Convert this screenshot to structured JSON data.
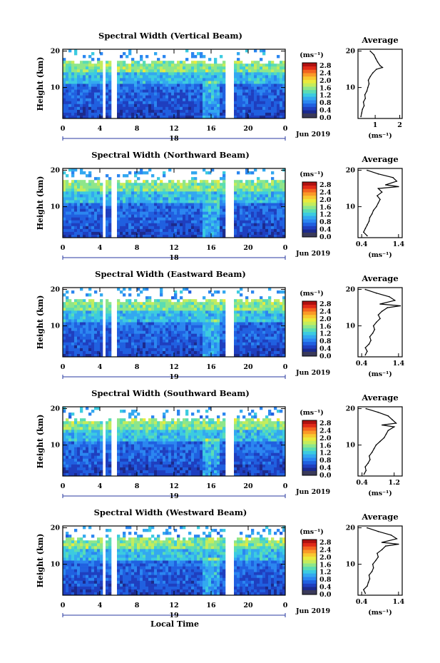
{
  "colors": {
    "colormap": [
      "#1c2a8c",
      "#1f3fbf",
      "#2060e0",
      "#2b86f0",
      "#33a8f0",
      "#3ccbe0",
      "#5adcb4",
      "#8ee68a",
      "#c4ec5c",
      "#eaea3c",
      "#f8c830",
      "#fa9a28",
      "#f36420",
      "#e02a18",
      "#b01010"
    ],
    "bottom_band": "#3a3a5a",
    "missing": "#ffffff"
  },
  "xlabel": "Local Time",
  "chart_data": [
    {
      "type": "heatmap",
      "title": "Spectral Width (Vertical Beam)",
      "ylabel": "Height (km)",
      "xlim": [
        0,
        24
      ],
      "ylim": [
        1.5,
        20.5
      ],
      "x_ticks": [
        "0",
        "4",
        "8",
        "12",
        "16",
        "20",
        "0"
      ],
      "y_ticks": [
        "20",
        "10"
      ],
      "date_labels": [
        "18",
        "Jun 2019"
      ],
      "data_gaps_hours": [
        [
          4.3,
          4.7
        ],
        [
          5.3,
          5.8
        ],
        [
          17.6,
          18.4
        ]
      ],
      "colorbar": {
        "unit_label": "(ms⁻¹)",
        "range": [
          0.0,
          2.8
        ],
        "tick_labels": [
          "2.8",
          "2.4",
          "2.0",
          "1.6",
          "1.2",
          "0.8",
          "0.4",
          "0.0"
        ]
      },
      "average_profile": {
        "title": "Average",
        "xlabel": "(ms⁻¹)",
        "x_tick_labels": [
          "1",
          "2"
        ],
        "y_tick_labels": [
          "20",
          "10"
        ],
        "xlim": [
          0.3,
          2.1
        ],
        "ylim": [
          1.5,
          20.5
        ],
        "width_ms": [
          0.42,
          0.45,
          0.48,
          0.55,
          0.52,
          0.6,
          0.58,
          0.66,
          0.7,
          0.75,
          0.72,
          0.8,
          0.9,
          1.05,
          1.3,
          1.2,
          1.1,
          1.02,
          0.95,
          0.8
        ],
        "height_km": [
          2,
          3,
          4,
          5,
          6,
          7,
          8,
          9,
          10,
          11,
          12,
          13,
          14,
          15,
          15.5,
          16,
          17,
          18,
          19,
          20
        ]
      }
    },
    {
      "type": "heatmap",
      "title": "Spectral Width (Northward Beam)",
      "ylabel": "Height (km)",
      "xlim": [
        0,
        24
      ],
      "ylim": [
        1.5,
        20.5
      ],
      "x_ticks": [
        "0",
        "4",
        "8",
        "12",
        "16",
        "20",
        "0"
      ],
      "y_ticks": [
        "20",
        "10"
      ],
      "date_labels": [
        "18",
        "Jun 2019"
      ],
      "data_gaps_hours": [
        [
          4.3,
          4.7
        ],
        [
          5.3,
          5.8
        ],
        [
          17.6,
          18.4
        ]
      ],
      "colorbar": {
        "unit_label": "(ms⁻¹)",
        "range": [
          0.0,
          2.8
        ],
        "tick_labels": [
          "2.8",
          "2.4",
          "2.0",
          "1.6",
          "1.2",
          "0.8",
          "0.4",
          "0.0"
        ]
      },
      "average_profile": {
        "title": "Average",
        "xlabel": "(ms⁻¹)",
        "x_tick_labels": [
          "0.4",
          "1.4"
        ],
        "y_tick_labels": [
          "20",
          "10"
        ],
        "xlim": [
          0.3,
          1.5
        ],
        "ylim": [
          1.5,
          20.5
        ],
        "width_ms": [
          0.55,
          0.45,
          0.5,
          0.55,
          0.6,
          0.62,
          0.68,
          0.72,
          0.8,
          0.85,
          0.9,
          0.82,
          0.95,
          0.85,
          1.4,
          1.05,
          1.35,
          1.25,
          0.85,
          0.55
        ],
        "height_km": [
          2,
          3,
          4,
          5,
          6,
          7,
          8,
          9,
          10,
          11,
          12,
          13,
          14,
          15,
          15.5,
          16,
          17,
          18,
          19,
          20
        ]
      }
    },
    {
      "type": "heatmap",
      "title": "Spectral Width (Eastward Beam)",
      "ylabel": "Height (km)",
      "xlim": [
        0,
        24
      ],
      "ylim": [
        1.5,
        20.5
      ],
      "x_ticks": [
        "0",
        "4",
        "8",
        "12",
        "16",
        "20",
        "0"
      ],
      "y_ticks": [
        "20",
        "10"
      ],
      "date_labels": [
        "19",
        "Jun 2019"
      ],
      "data_gaps_hours": [
        [
          4.3,
          4.7
        ],
        [
          5.3,
          5.8
        ],
        [
          17.6,
          18.4
        ]
      ],
      "colorbar": {
        "unit_label": "(ms⁻¹)",
        "range": [
          0.0,
          2.8
        ],
        "tick_labels": [
          "2.8",
          "2.4",
          "2.0",
          "1.6",
          "1.2",
          "0.8",
          "0.4",
          "0.0"
        ]
      },
      "average_profile": {
        "title": "Average",
        "xlabel": "(ms⁻¹)",
        "x_tick_labels": [
          "0.4",
          "1.4"
        ],
        "y_tick_labels": [
          "20",
          "10"
        ],
        "xlim": [
          0.3,
          1.5
        ],
        "ylim": [
          1.5,
          20.5
        ],
        "width_ms": [
          0.5,
          0.55,
          0.5,
          0.6,
          0.65,
          0.62,
          0.7,
          0.75,
          0.72,
          0.8,
          0.9,
          0.85,
          0.95,
          1.1,
          1.45,
          0.9,
          1.3,
          1.15,
          0.8,
          0.5
        ],
        "height_km": [
          2,
          3,
          4,
          5,
          6,
          7,
          8,
          9,
          10,
          11,
          12,
          13,
          14,
          15,
          15.5,
          16,
          17,
          18,
          19,
          20
        ]
      }
    },
    {
      "type": "heatmap",
      "title": "Spectral Width (Southward Beam)",
      "ylabel": "Height (km)",
      "xlim": [
        0,
        24
      ],
      "ylim": [
        1.5,
        20.5
      ],
      "x_ticks": [
        "0",
        "4",
        "8",
        "12",
        "16",
        "20",
        "0"
      ],
      "y_ticks": [
        "20",
        "10"
      ],
      "date_labels": [
        "19",
        "Jun 2019"
      ],
      "data_gaps_hours": [
        [
          4.3,
          4.7
        ],
        [
          5.3,
          5.8
        ],
        [
          17.6,
          18.4
        ]
      ],
      "colorbar": {
        "unit_label": "(ms⁻¹)",
        "range": [
          0.0,
          2.8
        ],
        "tick_labels": [
          "2.8",
          "2.4",
          "2.0",
          "1.6",
          "1.2",
          "0.8",
          "0.4",
          "0.0"
        ]
      },
      "average_profile": {
        "title": "Average",
        "xlabel": "(ms⁻¹)",
        "x_tick_labels": [
          "0.4",
          "1.2"
        ],
        "y_tick_labels": [
          "20",
          "10"
        ],
        "xlim": [
          0.3,
          1.4
        ],
        "ylim": [
          1.5,
          20.5
        ],
        "width_ms": [
          0.45,
          0.5,
          0.48,
          0.55,
          0.6,
          0.58,
          0.65,
          0.7,
          0.75,
          0.85,
          0.95,
          1.0,
          1.05,
          1.2,
          0.9,
          1.25,
          1.15,
          1.05,
          0.8,
          0.5
        ],
        "height_km": [
          2,
          3,
          4,
          5,
          6,
          7,
          8,
          9,
          10,
          11,
          12,
          13,
          14,
          15,
          15.5,
          16,
          17,
          18,
          19,
          20
        ]
      }
    },
    {
      "type": "heatmap",
      "title": "Spectral Width (Westward Beam)",
      "ylabel": "Height (km)",
      "xlim": [
        0,
        24
      ],
      "ylim": [
        1.5,
        20.5
      ],
      "x_ticks": [
        "0",
        "4",
        "8",
        "12",
        "16",
        "20",
        "0"
      ],
      "y_ticks": [
        "20",
        "10"
      ],
      "date_labels": [
        "19",
        "Jun 2019"
      ],
      "data_gaps_hours": [
        [
          4.3,
          4.7
        ],
        [
          5.3,
          5.8
        ],
        [
          17.6,
          18.4
        ]
      ],
      "colorbar": {
        "unit_label": "(ms⁻¹)",
        "range": [
          0.0,
          2.8
        ],
        "tick_labels": [
          "2.8",
          "2.4",
          "2.0",
          "1.6",
          "1.2",
          "0.8",
          "0.4",
          "0.0"
        ]
      },
      "average_profile": {
        "title": "Average",
        "xlabel": "(ms⁻¹)",
        "x_tick_labels": [
          "0.4",
          "1.4"
        ],
        "y_tick_labels": [
          "20",
          "10"
        ],
        "xlim": [
          0.3,
          1.5
        ],
        "ylim": [
          1.5,
          20.5
        ],
        "width_ms": [
          0.5,
          0.45,
          0.55,
          0.58,
          0.62,
          0.6,
          0.68,
          0.72,
          0.7,
          0.78,
          0.85,
          0.82,
          0.95,
          1.05,
          1.4,
          0.95,
          1.35,
          1.2,
          0.85,
          0.55
        ],
        "height_km": [
          2,
          3,
          4,
          5,
          6,
          7,
          8,
          9,
          10,
          11,
          12,
          13,
          14,
          15,
          15.5,
          16,
          17,
          18,
          19,
          20
        ]
      }
    }
  ]
}
